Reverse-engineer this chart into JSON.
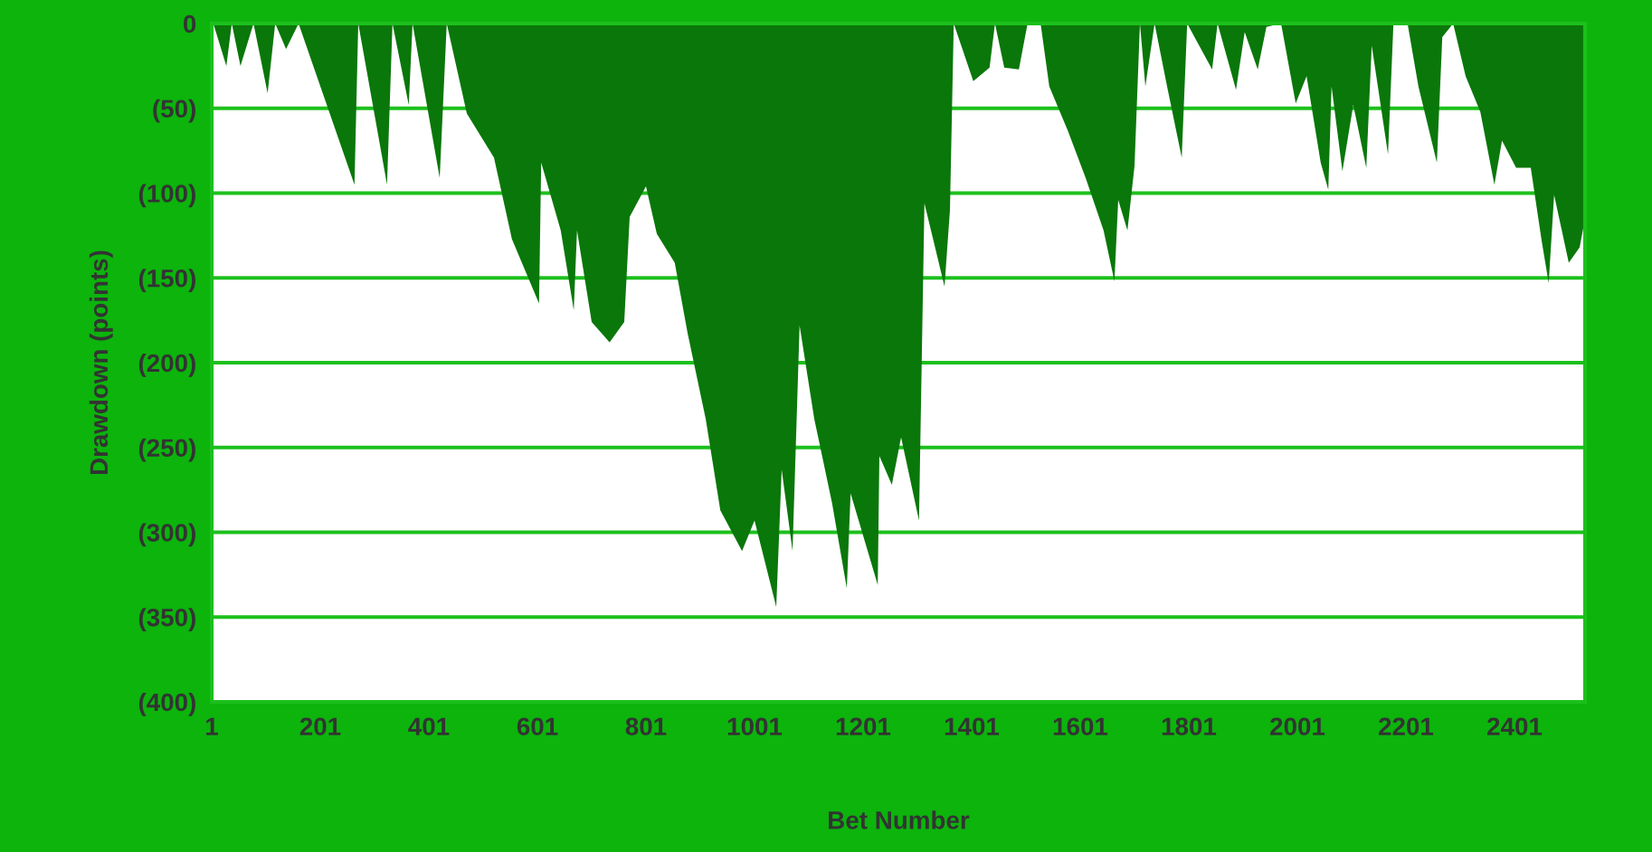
{
  "chart_data": {
    "type": "area",
    "xlabel": "Bet Number",
    "ylabel": "Drawdown (points)",
    "xlim": [
      1,
      2531
    ],
    "xticks": [
      1,
      201,
      401,
      601,
      801,
      1001,
      1201,
      1401,
      1601,
      1801,
      2001,
      2201,
      2401
    ],
    "ylim": [
      -400,
      0
    ],
    "yticks": [
      {
        "value": -400,
        "label": "(400)"
      },
      {
        "value": -350,
        "label": "(350)"
      },
      {
        "value": -300,
        "label": "(300)"
      },
      {
        "value": -250,
        "label": "(250)"
      },
      {
        "value": -200,
        "label": "(200)"
      },
      {
        "value": -150,
        "label": "(150)"
      },
      {
        "value": -100,
        "label": "(100)"
      },
      {
        "value": -50,
        "label": "(50)"
      },
      0
    ],
    "grid": "y",
    "series": [
      {
        "color": "#0a770a",
        "x": [
          1,
          4,
          28,
          38,
          54,
          78,
          104,
          118,
          138,
          161,
          264,
          271,
          324,
          334,
          364,
          371,
          421,
          434,
          471,
          521,
          554,
          604,
          608,
          644,
          668,
          674,
          701,
          734,
          761,
          771,
          801,
          821,
          854,
          878,
          911,
          938,
          978,
          1001,
          1041,
          1051,
          1071,
          1084,
          1111,
          1144,
          1171,
          1178,
          1228,
          1231,
          1254,
          1271,
          1304,
          1314,
          1351,
          1361,
          1368,
          1404,
          1434,
          1444,
          1461,
          1488,
          1504,
          1528,
          1544,
          1578,
          1611,
          1644,
          1664,
          1671,
          1688,
          1701,
          1711,
          1721,
          1738,
          1761,
          1788,
          1798,
          1844,
          1854,
          1888,
          1904,
          1928,
          1944,
          1971,
          1998,
          2018,
          2044,
          2058,
          2064,
          2084,
          2104,
          2128,
          2138,
          2168,
          2178,
          2204,
          2224,
          2258,
          2268,
          2288,
          2311,
          2338,
          2364,
          2378,
          2404,
          2431,
          2451,
          2464,
          2474,
          2501,
          2521,
          2531
        ],
        "values": [
          0,
          0,
          -25,
          0,
          -25,
          0,
          -41,
          0,
          -15,
          0,
          -95,
          0,
          -95,
          0,
          -48,
          0,
          -91,
          0,
          -53,
          -79,
          -127,
          -165,
          -82,
          -122,
          -169,
          -122,
          -176,
          -188,
          -176,
          -114,
          -96,
          -124,
          -141,
          -183,
          -233,
          -287,
          -311,
          -293,
          -344,
          -263,
          -311,
          -178,
          -233,
          -283,
          -333,
          -277,
          -331,
          -255,
          -272,
          -244,
          -293,
          -106,
          -155,
          -110,
          0,
          -34,
          -26,
          0,
          -26,
          -27,
          0,
          0,
          -37,
          -63,
          -91,
          -122,
          -152,
          -104,
          -122,
          -84,
          0,
          -37,
          0,
          -37,
          -79,
          0,
          -27,
          0,
          -39,
          -5,
          -27,
          -2,
          0,
          -47,
          -31,
          -82,
          -98,
          -37,
          -87,
          -48,
          -85,
          -13,
          -77,
          0,
          0,
          -37,
          -82,
          -8,
          0,
          -31,
          -52,
          -95,
          -69,
          -85,
          -85,
          -128,
          -153,
          -101,
          -141,
          -132,
          -115
        ]
      }
    ]
  }
}
